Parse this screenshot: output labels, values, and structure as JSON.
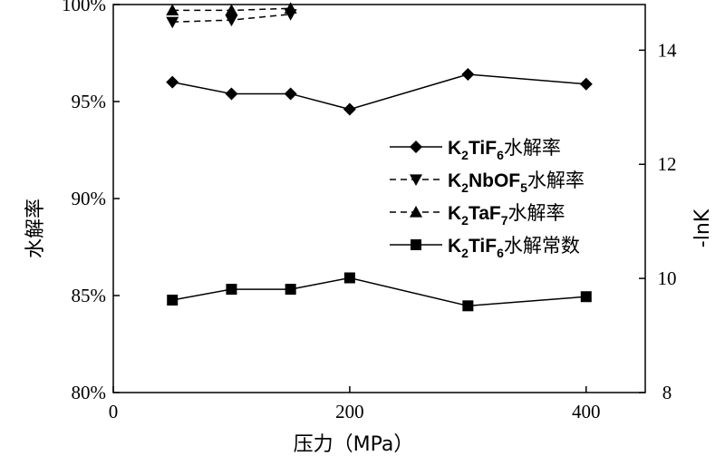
{
  "chart_data": {
    "type": "line",
    "x_axis": {
      "label": "压力（MPa）",
      "range": [
        0,
        450
      ],
      "ticks": [
        0,
        200,
        400
      ],
      "tick_labels": [
        "0",
        "200",
        "400"
      ]
    },
    "y_left": {
      "label": "水解率",
      "range": [
        80,
        100
      ],
      "ticks": [
        80,
        85,
        90,
        95,
        100
      ],
      "tick_labels": [
        "80%",
        "85%",
        "90%",
        "95%",
        "100%"
      ]
    },
    "y_right": {
      "label": "-lnK",
      "range": [
        8,
        14.8
      ],
      "ticks": [
        8,
        10,
        12,
        14
      ],
      "tick_labels": [
        "8",
        "10",
        "12",
        "14"
      ]
    },
    "grid": false,
    "legend_position": "right-center",
    "series": [
      {
        "name": "K2TiF6水解率",
        "legend": {
          "main": "K",
          "sub1": "2",
          "mid": "TiF",
          "sub2": "6",
          "cjk": "水解率"
        },
        "axis": "left",
        "marker": "diamond",
        "line": "solid",
        "x": [
          50,
          100,
          150,
          200,
          300,
          400
        ],
        "y": [
          96.0,
          95.4,
          95.4,
          94.6,
          96.4,
          95.9
        ]
      },
      {
        "name": "K2NbOF5水解率",
        "legend": {
          "main": "K",
          "sub1": "2",
          "mid": "NbOF",
          "sub2": "5",
          "cjk": "水解率"
        },
        "axis": "left",
        "marker": "triangle-down",
        "line": "dashed",
        "x": [
          50,
          100,
          150
        ],
        "y": [
          99.1,
          99.2,
          99.5
        ]
      },
      {
        "name": "K2TaF7水解率",
        "legend": {
          "main": "K",
          "sub1": "2",
          "mid": "TaF",
          "sub2": "7",
          "cjk": "水解率"
        },
        "axis": "left",
        "marker": "triangle-up",
        "line": "dashed",
        "x": [
          50,
          100,
          150
        ],
        "y": [
          99.7,
          99.7,
          99.8
        ]
      },
      {
        "name": "K2TiF6水解常数",
        "legend": {
          "main": "K",
          "sub1": "2",
          "mid": "TiF",
          "sub2": "6",
          "cjk": "水解常数"
        },
        "axis": "right",
        "marker": "square",
        "line": "solid",
        "x": [
          50,
          100,
          150,
          200,
          300,
          400
        ],
        "y": [
          9.62,
          9.81,
          9.81,
          10.01,
          9.52,
          9.68
        ]
      }
    ]
  }
}
